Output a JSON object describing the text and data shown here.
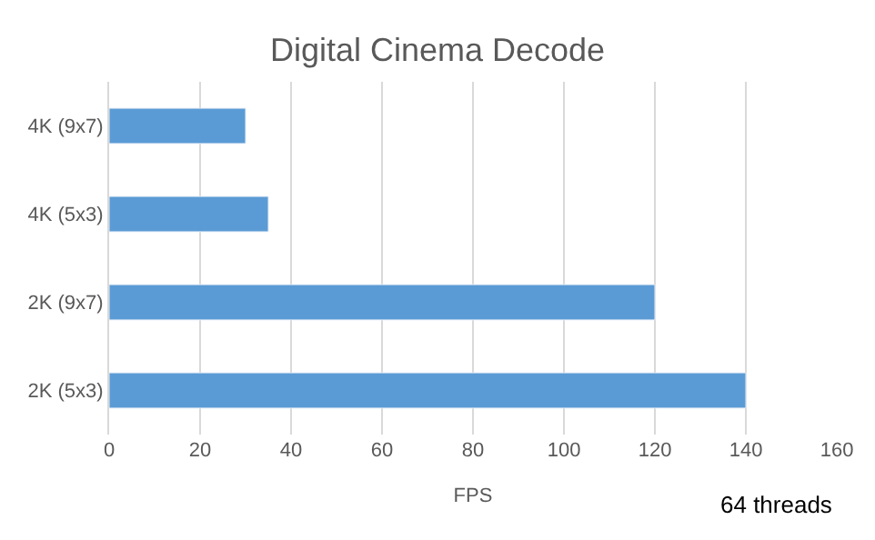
{
  "chart_data": {
    "type": "bar",
    "orientation": "horizontal",
    "title": "Digital Cinema Decode",
    "xlabel": "FPS",
    "categories": [
      "4K (9x7)",
      "4K (5x3)",
      "2K (9x7)",
      "2K (5x3)"
    ],
    "values": [
      30,
      35,
      120,
      140
    ],
    "color": "#5b9bd5",
    "xlim": [
      0,
      160
    ],
    "xticks": [
      0,
      20,
      40,
      60,
      80,
      100,
      120,
      140,
      160
    ],
    "grid": "x",
    "annotations": [
      "64 threads"
    ]
  }
}
